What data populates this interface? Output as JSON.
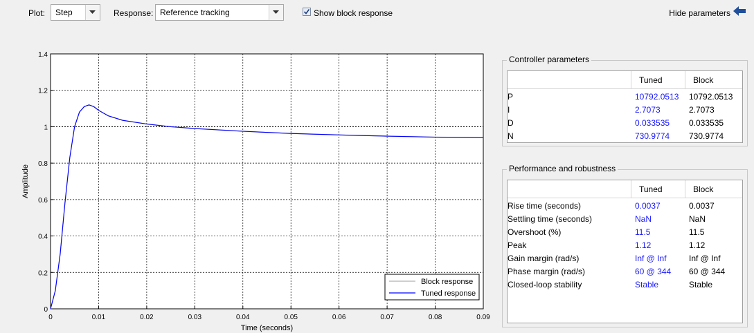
{
  "toolbar": {
    "plot_label": "Plot:",
    "plot_value": "Step",
    "response_label": "Response:",
    "response_value": "Reference tracking",
    "show_block_label": "Show block response",
    "show_block_checked": true,
    "hide_params_label": "Hide parameters",
    "hide_arrow_color": "#1f4e9c"
  },
  "chart_data": {
    "type": "line",
    "xlabel": "Time (seconds)",
    "ylabel": "Amplitude",
    "xlim": [
      0,
      0.09
    ],
    "ylim": [
      0,
      1.4
    ],
    "xticks": [
      "0",
      "0.01",
      "0.02",
      "0.03",
      "0.04",
      "0.05",
      "0.06",
      "0.07",
      "0.08",
      "0.09"
    ],
    "yticks": [
      "0",
      "0.2",
      "0.4",
      "0.6",
      "0.8",
      "1",
      "1.2",
      "1.4"
    ],
    "grid": true,
    "reference_line": 1.0,
    "legend_position": "bottom-right",
    "series": [
      {
        "name": "Block response",
        "color": "#b0b0b0",
        "x": [
          0,
          0.001,
          0.002,
          0.003,
          0.004,
          0.005,
          0.006,
          0.007,
          0.008,
          0.009,
          0.01,
          0.012,
          0.015,
          0.02,
          0.025,
          0.03,
          0.04,
          0.05,
          0.06,
          0.07,
          0.08,
          0.09
        ],
        "y": [
          0,
          0.1,
          0.3,
          0.58,
          0.83,
          1.0,
          1.08,
          1.11,
          1.12,
          1.11,
          1.09,
          1.06,
          1.035,
          1.015,
          1.0,
          0.99,
          0.975,
          0.963,
          0.955,
          0.948,
          0.943,
          0.94
        ]
      },
      {
        "name": "Tuned response",
        "color": "#0000ff",
        "x": [
          0,
          0.001,
          0.002,
          0.003,
          0.004,
          0.005,
          0.006,
          0.007,
          0.008,
          0.009,
          0.01,
          0.012,
          0.015,
          0.02,
          0.025,
          0.03,
          0.04,
          0.05,
          0.06,
          0.07,
          0.08,
          0.09
        ],
        "y": [
          0,
          0.1,
          0.3,
          0.58,
          0.83,
          1.0,
          1.08,
          1.11,
          1.12,
          1.11,
          1.09,
          1.06,
          1.035,
          1.015,
          1.0,
          0.99,
          0.975,
          0.963,
          0.955,
          0.948,
          0.943,
          0.94
        ]
      }
    ]
  },
  "controller": {
    "title": "Controller parameters",
    "headers": [
      "",
      "Tuned",
      "Block"
    ],
    "rows": [
      {
        "name": "P",
        "tuned": "10792.0513",
        "block": "10792.0513"
      },
      {
        "name": "I",
        "tuned": "2.7073",
        "block": "2.7073"
      },
      {
        "name": "D",
        "tuned": "0.033535",
        "block": "0.033535"
      },
      {
        "name": "N",
        "tuned": "730.9774",
        "block": "730.9774"
      }
    ]
  },
  "performance": {
    "title": "Performance and robustness",
    "headers": [
      "",
      "Tuned",
      "Block"
    ],
    "rows": [
      {
        "name": "Rise time (seconds)",
        "tuned": "0.0037",
        "block": "0.0037"
      },
      {
        "name": "Settling time (seconds)",
        "tuned": "NaN",
        "block": "NaN"
      },
      {
        "name": "Overshoot (%)",
        "tuned": "11.5",
        "block": "11.5"
      },
      {
        "name": "Peak",
        "tuned": "1.12",
        "block": "1.12"
      },
      {
        "name": "Gain margin (rad/s)",
        "tuned": "Inf @ Inf",
        "block": "Inf @ Inf"
      },
      {
        "name": "Phase margin (rad/s)",
        "tuned": "60 @ 344",
        "block": "60 @ 344"
      },
      {
        "name": "Closed-loop stability",
        "tuned": "Stable",
        "block": "Stable"
      }
    ]
  }
}
